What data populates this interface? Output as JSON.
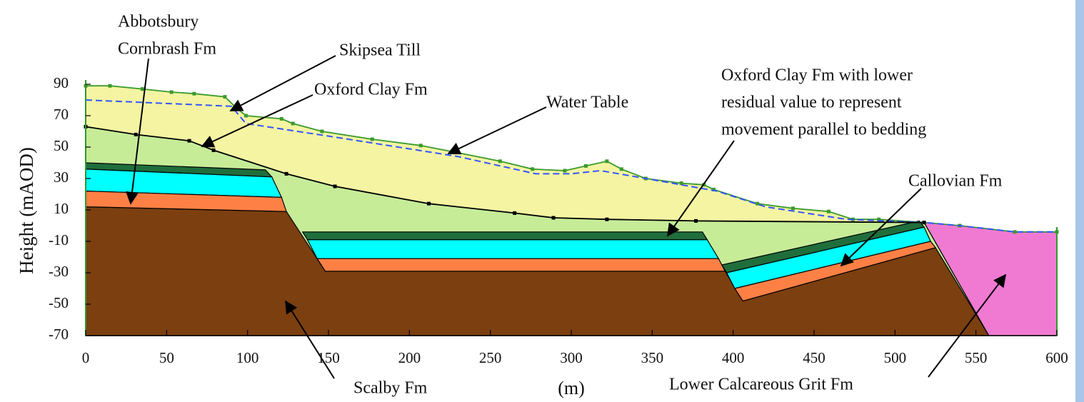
{
  "chart_data": {
    "type": "section",
    "y_label": "Height (mAOD)",
    "x_label": "(m)",
    "xlim": [
      0,
      600
    ],
    "ylim": [
      -70,
      90
    ],
    "xticks": [
      0,
      50,
      100,
      150,
      200,
      250,
      300,
      350,
      400,
      450,
      500,
      550,
      600
    ],
    "yticks": [
      90,
      70,
      50,
      30,
      10,
      -10,
      -30,
      -50,
      -70
    ],
    "layers": [
      {
        "color": "#f4f4a2",
        "x": [
          0,
          15,
          35,
          53,
          67,
          86,
          93,
          99,
          121,
          128,
          146,
          177,
          207,
          227,
          256,
          276,
          296,
          309,
          322,
          331,
          346,
          368,
          382,
          388,
          415,
          437,
          459,
          474,
          490,
          518,
          377,
          322,
          289,
          265,
          212,
          154,
          124,
          79,
          64,
          31,
          0
        ],
        "y": [
          89,
          89,
          87,
          85,
          84,
          82,
          75,
          70,
          68,
          65,
          60,
          55,
          51,
          47,
          41,
          36,
          35,
          38,
          41,
          36,
          30,
          27,
          26,
          23,
          14,
          11,
          9,
          4,
          4,
          2,
          3,
          4,
          5,
          8,
          14,
          25,
          33,
          48,
          54,
          58,
          63
        ]
      },
      {
        "color": "#c6ec98",
        "x": [
          0,
          31,
          64,
          79,
          124,
          154,
          212,
          265,
          289,
          322,
          377,
          518,
          558,
          0
        ],
        "y": [
          63,
          58,
          54,
          48,
          33,
          25,
          14,
          8,
          5,
          4,
          3,
          2,
          -70,
          -70
        ]
      },
      {
        "color": "#7b3f10",
        "x": [
          0,
          124,
          148,
          395,
          406,
          525,
          558,
          0
        ],
        "y": [
          12,
          9,
          -29,
          -29,
          -48,
          -14,
          -70,
          -70
        ]
      },
      {
        "color": "#1f6e3c",
        "x": [
          0,
          111,
          115,
          0
        ],
        "y": [
          40,
          35.5,
          31,
          36
        ]
      },
      {
        "color": "#00ffff",
        "x": [
          0,
          115,
          121,
          0
        ],
        "y": [
          36,
          31,
          18,
          22
        ]
      },
      {
        "color": "#ff8045",
        "x": [
          0,
          121,
          124,
          0
        ],
        "y": [
          22,
          18,
          9,
          12
        ]
      },
      {
        "color": "#1f6e3c",
        "x": [
          134,
          381,
          384,
          137
        ],
        "y": [
          -4,
          -4,
          -9,
          -9
        ]
      },
      {
        "color": "#00ffff",
        "x": [
          137,
          384,
          391,
          143
        ],
        "y": [
          -9,
          -9,
          -21,
          -21
        ]
      },
      {
        "color": "#ff8045",
        "x": [
          143,
          391,
          395,
          148
        ],
        "y": [
          -21,
          -21,
          -29,
          -29
        ]
      },
      {
        "color": "#1f6e3c",
        "x": [
          393,
          515,
          518,
          396
        ],
        "y": [
          -25,
          3,
          -1,
          -30
        ]
      },
      {
        "color": "#00ffff",
        "x": [
          396,
          518,
          522,
          401
        ],
        "y": [
          -30,
          -1,
          -10,
          -40
        ]
      },
      {
        "color": "#ff8045",
        "x": [
          401,
          522,
          525,
          406
        ],
        "y": [
          -40,
          -10,
          -14,
          -48
        ]
      },
      {
        "color": "#f07ad2",
        "x": [
          518,
          540,
          574,
          600,
          600,
          558
        ],
        "y": [
          2,
          0,
          -4,
          -4,
          -70,
          -70
        ]
      }
    ],
    "series": [
      {
        "color": "#3b9b2b",
        "x": [
          0,
          15,
          35,
          53,
          67,
          86,
          93,
          99,
          121,
          128,
          146,
          177,
          207,
          227,
          256,
          276,
          296,
          309,
          322,
          331,
          346,
          368,
          382,
          388,
          415,
          437,
          459,
          474,
          490,
          518,
          540,
          574,
          600
        ],
        "y": [
          89,
          89,
          87,
          85,
          84,
          82,
          75,
          70,
          68,
          65,
          60,
          55,
          51,
          47,
          41,
          36,
          35,
          38,
          41,
          36,
          30,
          27,
          26,
          23,
          14,
          11,
          9,
          4,
          4,
          2,
          0,
          -4,
          -4
        ]
      },
      {
        "name": "Water Table",
        "color": "#3355ff",
        "dashed": true,
        "x": [
          0,
          90,
          99,
          150,
          230,
          278,
          300,
          318,
          335,
          390,
          420,
          470,
          518,
          540,
          574,
          600
        ],
        "y": [
          80,
          76,
          65,
          57,
          44,
          33,
          33,
          35,
          32,
          22,
          12,
          4,
          2,
          0,
          -4,
          -4
        ]
      },
      {
        "color": "#000000",
        "x": [
          0,
          31,
          64,
          79,
          124,
          154,
          212,
          265,
          289,
          322,
          377,
          518
        ],
        "y": [
          63,
          58,
          54,
          48,
          33,
          25,
          14,
          8,
          5,
          4,
          3,
          2
        ]
      }
    ],
    "annotations": [
      [
        "Abbotsbury",
        "Cornbrash Fm"
      ],
      [
        "Skipsea Till"
      ],
      [
        "Oxford Clay Fm"
      ],
      [
        "Oxford Clay Fm with lower",
        "residual value to represent",
        "movement parallel to bedding"
      ],
      [
        "Callovian Fm"
      ],
      [
        "Scalby Fm"
      ],
      [
        "Lower Calcareous Grit Fm"
      ]
    ]
  }
}
